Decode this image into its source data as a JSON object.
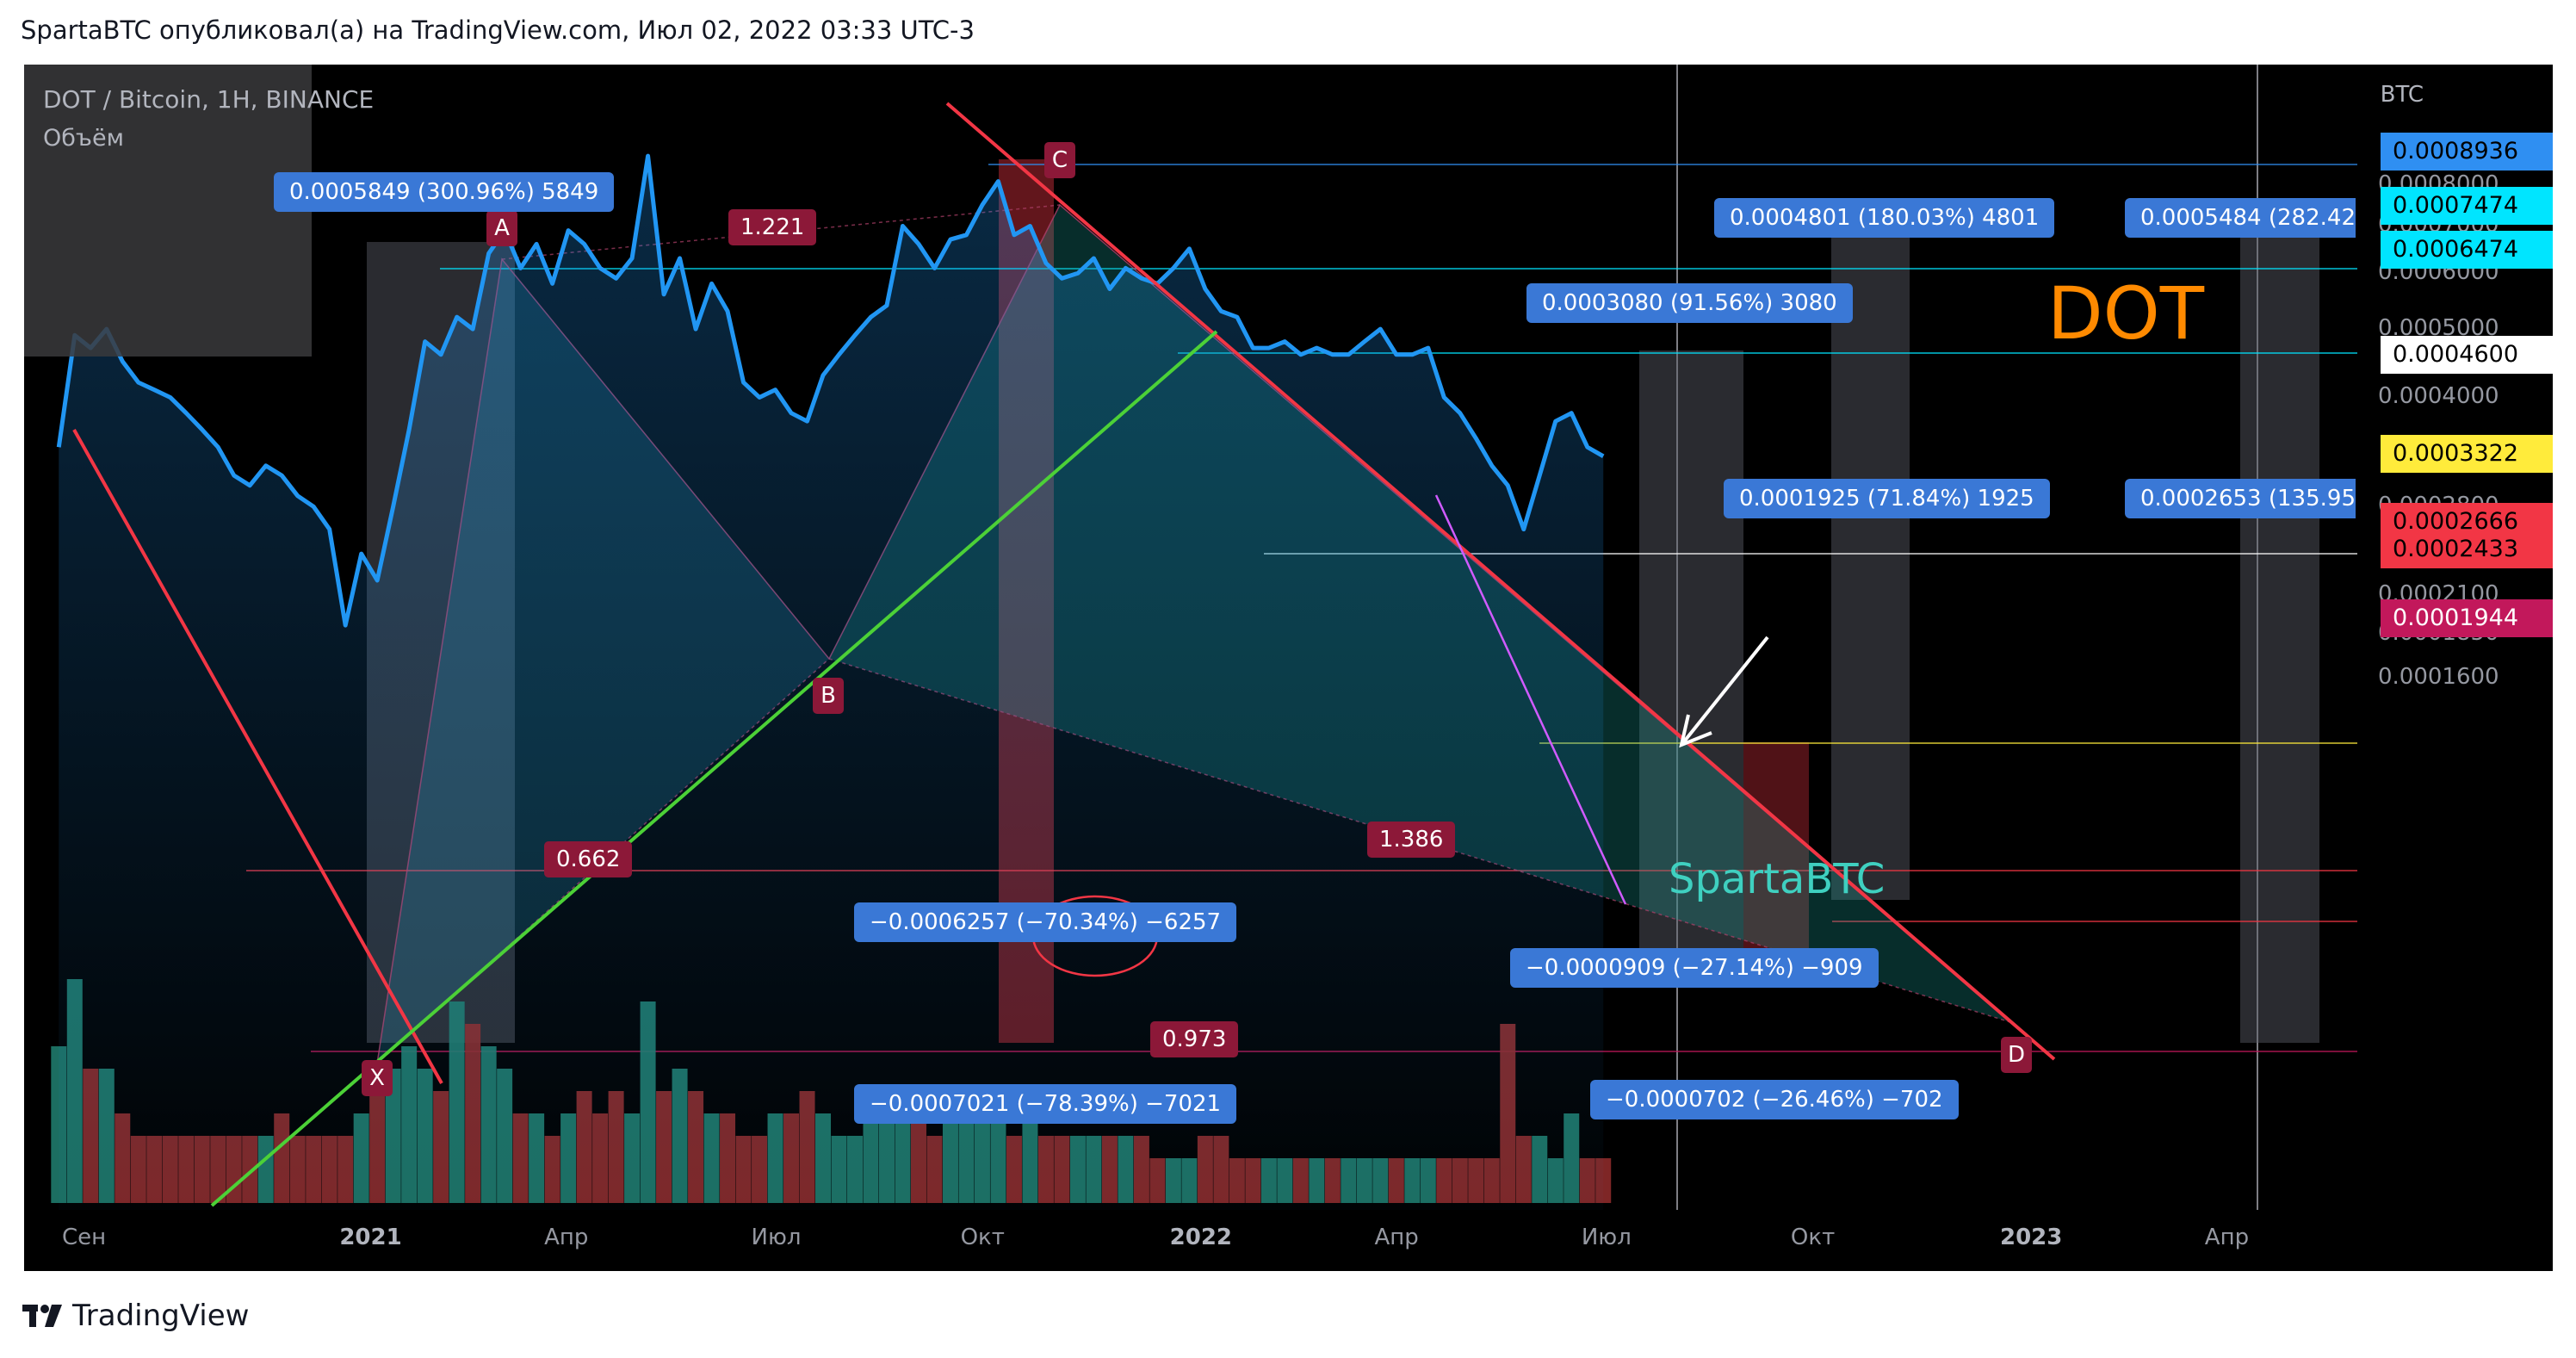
{
  "header": {
    "text": "SpartaBTC опубликовал(а) на TradingView.com, Июл 02, 2022 03:33 UTC-3"
  },
  "legend": {
    "symbol": "DOT / Bitcoin, 1H, BINANCE",
    "volume_label": "Объём"
  },
  "footer": {
    "brand": "TradingView"
  },
  "annotations": {
    "title": "DOT",
    "watermark": "SpartaBTC",
    "ratios": [
      "1.221",
      "0.662",
      "0.973",
      "1.386"
    ],
    "points": [
      "X",
      "A",
      "B",
      "C",
      "D"
    ],
    "measures": [
      "0.0005849 (300.96%) 5849",
      "0.0004801 (180.03%) 4801",
      "0.0005484 (282.42",
      "0.0003080 (91.56%) 3080",
      "0.0001925 (71.84%) 1925",
      "0.0002653 (135.95",
      "−0.0006257 (−70.34%) −6257",
      "−0.0000909 (−27.14%) −909",
      "−0.0007021 (−78.39%) −7021",
      "−0.0000702 (−26.46%) −702"
    ]
  },
  "price_labels": [
    {
      "value": "0.0008936",
      "bg": "#2f8ff2",
      "fg": "#000000"
    },
    {
      "value": "0.0007474",
      "bg": "#00e5ff",
      "fg": "#000000"
    },
    {
      "value": "0.0006474",
      "bg": "#00e5ff",
      "fg": "#000000"
    },
    {
      "value": "0.0004600",
      "bg": "#ffffff",
      "fg": "#000000"
    },
    {
      "value": "0.0003322",
      "bg": "#ffeb3b",
      "fg": "#000000"
    },
    {
      "value": "0.0002666",
      "bg": "#f23645",
      "fg": "#000000"
    },
    {
      "value": "0.0002433",
      "bg": "#f23645",
      "fg": "#000000"
    },
    {
      "value": "0.0001944",
      "bg": "#c2185b",
      "fg": "#ffffff"
    }
  ],
  "chart_data": {
    "type": "line",
    "title": "DOT / Bitcoin, 1H, BINANCE",
    "ylabel": "BTC",
    "y_scale": "log",
    "ylim": [
      0.00015,
      0.00095
    ],
    "yticks": [
      "0.0008000",
      "0.0007000",
      "0.0006000",
      "0.0005000",
      "0.0004000",
      "0.0002800",
      "0.0002100",
      "0.0001850",
      "0.0001600"
    ],
    "xticks": [
      {
        "label": "Сен",
        "bold": false
      },
      {
        "label": "2021",
        "bold": true
      },
      {
        "label": "Апр",
        "bold": false
      },
      {
        "label": "Июл",
        "bold": false
      },
      {
        "label": "Окт",
        "bold": false
      },
      {
        "label": "2022",
        "bold": true
      },
      {
        "label": "Апр",
        "bold": false
      },
      {
        "label": "Июл",
        "bold": false
      },
      {
        "label": "Окт",
        "bold": false
      },
      {
        "label": "2023",
        "bold": true
      },
      {
        "label": "Апр",
        "bold": false
      }
    ],
    "x": [
      "2020-08-20",
      "2020-08-27",
      "2020-09-03",
      "2020-09-10",
      "2020-09-17",
      "2020-09-24",
      "2020-10-01",
      "2020-10-08",
      "2020-10-15",
      "2020-10-22",
      "2020-10-29",
      "2020-11-05",
      "2020-11-12",
      "2020-11-19",
      "2020-11-26",
      "2020-12-03",
      "2020-12-10",
      "2020-12-17",
      "2020-12-24",
      "2020-12-31",
      "2021-01-07",
      "2021-01-14",
      "2021-01-21",
      "2021-01-28",
      "2021-02-04",
      "2021-02-11",
      "2021-02-18",
      "2021-02-25",
      "2021-03-04",
      "2021-03-11",
      "2021-03-18",
      "2021-03-25",
      "2021-04-01",
      "2021-04-08",
      "2021-04-15",
      "2021-04-22",
      "2021-04-29",
      "2021-05-06",
      "2021-05-13",
      "2021-05-20",
      "2021-05-27",
      "2021-06-03",
      "2021-06-10",
      "2021-06-17",
      "2021-06-24",
      "2021-07-01",
      "2021-07-08",
      "2021-07-15",
      "2021-07-22",
      "2021-07-29",
      "2021-08-05",
      "2021-08-12",
      "2021-08-19",
      "2021-08-26",
      "2021-09-02",
      "2021-09-09",
      "2021-09-16",
      "2021-09-23",
      "2021-09-30",
      "2021-10-07",
      "2021-10-14",
      "2021-10-21",
      "2021-10-28",
      "2021-11-04",
      "2021-11-11",
      "2021-11-18",
      "2021-11-25",
      "2021-12-02",
      "2021-12-09",
      "2021-12-16",
      "2021-12-23",
      "2021-12-30",
      "2022-01-06",
      "2022-01-13",
      "2022-01-20",
      "2022-01-27",
      "2022-02-03",
      "2022-02-10",
      "2022-02-17",
      "2022-02-24",
      "2022-03-03",
      "2022-03-10",
      "2022-03-17",
      "2022-03-24",
      "2022-03-31",
      "2022-04-07",
      "2022-04-14",
      "2022-04-21",
      "2022-04-28",
      "2022-05-05",
      "2022-05-12",
      "2022-05-19",
      "2022-05-26",
      "2022-06-02",
      "2022-06-09",
      "2022-06-16",
      "2022-06-23",
      "2022-06-30"
    ],
    "series": [
      {
        "values": [
          0.00034,
          0.00049,
          0.00047,
          0.0005,
          0.00045,
          0.00042,
          0.00041,
          0.0004,
          0.00038,
          0.00036,
          0.00034,
          0.00031,
          0.0003,
          0.00032,
          0.00031,
          0.00029,
          0.00028,
          0.00026,
          0.00019,
          0.00024,
          0.00022,
          0.00028,
          0.00036,
          0.00048,
          0.00046,
          0.00052,
          0.0005,
          0.00064,
          0.00069,
          0.00061,
          0.00066,
          0.00058,
          0.00069,
          0.00066,
          0.00061,
          0.00059,
          0.00063,
          0.00088,
          0.00056,
          0.00063,
          0.0005,
          0.00058,
          0.00053,
          0.00042,
          0.0004,
          0.00041,
          0.00038,
          0.00037,
          0.00043,
          0.00046,
          0.00049,
          0.00052,
          0.00054,
          0.0007,
          0.00066,
          0.00061,
          0.00067,
          0.00068,
          0.00075,
          0.00081,
          0.00068,
          0.0007,
          0.00062,
          0.00059,
          0.0006,
          0.00063,
          0.00057,
          0.00061,
          0.00059,
          0.00058,
          0.00061,
          0.00065,
          0.00057,
          0.00053,
          0.00052,
          0.00047,
          0.00047,
          0.00048,
          0.00046,
          0.00047,
          0.00046,
          0.00046,
          0.00048,
          0.0005,
          0.00046,
          0.00046,
          0.00047,
          0.0004,
          0.00038,
          0.00035,
          0.00032,
          0.0003,
          0.00026,
          0.00031,
          0.00037,
          0.00038,
          0.00034,
          0.00033
        ],
        "color": "#2196f3"
      }
    ],
    "volume": [
      7,
      10,
      6,
      6,
      4,
      3,
      3,
      3,
      3,
      3,
      3,
      3,
      3,
      3,
      4,
      3,
      3,
      3,
      3,
      4,
      5,
      6,
      7,
      6,
      5,
      9,
      8,
      7,
      6,
      4,
      4,
      3,
      4,
      5,
      4,
      5,
      4,
      9,
      5,
      6,
      5,
      4,
      4,
      3,
      3,
      4,
      4,
      5,
      4,
      3,
      3,
      4,
      4,
      5,
      4,
      3,
      4,
      5,
      4,
      4,
      3,
      4,
      3,
      3,
      3,
      3,
      3,
      3,
      3,
      2,
      2,
      2,
      3,
      3,
      2,
      2,
      2,
      2,
      2,
      2,
      2,
      2,
      2,
      2,
      2,
      2,
      2,
      2,
      2,
      2,
      2,
      8,
      3,
      3,
      2,
      4,
      2,
      2
    ]
  },
  "colors": {
    "line": "#2196f3",
    "trend_red": "#f23645",
    "trend_green": "#4cd137",
    "measure_box": "#3a78d6",
    "pattern_point": "#8c1838",
    "background": "#000000"
  }
}
